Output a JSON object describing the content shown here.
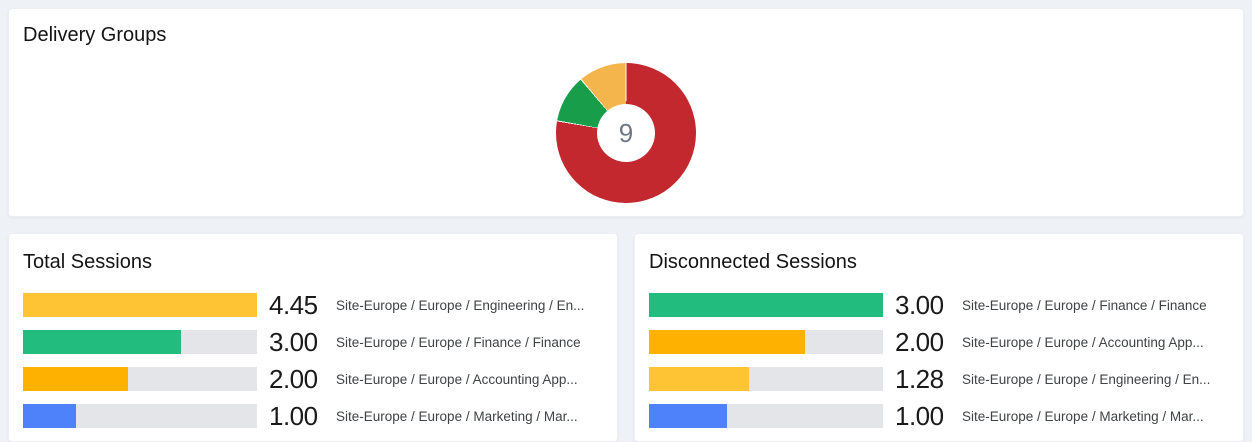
{
  "colors": {
    "page_background": "#EEF1F6",
    "card_background": "#FFFFFF",
    "bar_track": "#E4E5E8",
    "value_text": "#1A1A1A",
    "label_text": "#3F4346",
    "donut_center_text": "#6E7887"
  },
  "chart_data": [
    {
      "id": "delivery-groups",
      "type": "pie",
      "donut": true,
      "title": "Delivery Groups",
      "center_label": "9",
      "total": 9,
      "start_angle_deg": 0,
      "direction": "clockwise",
      "legend": "none",
      "segments": [
        {
          "name": "segment-red",
          "value": 7,
          "color": "#C2282D"
        },
        {
          "name": "segment-green",
          "value": 1,
          "color": "#189E4A"
        },
        {
          "name": "segment-amber",
          "value": 1,
          "color": "#F5B54D"
        }
      ]
    },
    {
      "id": "total-sessions",
      "type": "bar",
      "orientation": "horizontal",
      "title": "Total Sessions",
      "xlim": [
        0,
        4.45
      ],
      "grid": false,
      "rows": [
        {
          "label": "Site-Europe / Europe / Engineering / En...",
          "value": 4.45,
          "value_text": "4.45",
          "color": "#FFC433"
        },
        {
          "label": "Site-Europe / Europe / Finance / Finance",
          "value": 3.0,
          "value_text": "3.00",
          "color": "#22BC7E"
        },
        {
          "label": "Site-Europe / Europe / Accounting App...",
          "value": 2.0,
          "value_text": "2.00",
          "color": "#FFB100"
        },
        {
          "label": "Site-Europe / Europe / Marketing / Mar...",
          "value": 1.0,
          "value_text": "1.00",
          "color": "#4E82FB"
        }
      ]
    },
    {
      "id": "disconnected-sessions",
      "type": "bar",
      "orientation": "horizontal",
      "title": "Disconnected Sessions",
      "xlim": [
        0,
        3.0
      ],
      "grid": false,
      "rows": [
        {
          "label": "Site-Europe / Europe / Finance / Finance",
          "value": 3.0,
          "value_text": "3.00",
          "color": "#22BC7E"
        },
        {
          "label": "Site-Europe / Europe / Accounting App...",
          "value": 2.0,
          "value_text": "2.00",
          "color": "#FFB100"
        },
        {
          "label": "Site-Europe / Europe / Engineering / En...",
          "value": 1.28,
          "value_text": "1.28",
          "color": "#FFC433"
        },
        {
          "label": "Site-Europe / Europe / Marketing / Mar...",
          "value": 1.0,
          "value_text": "1.00",
          "color": "#4E82FB"
        }
      ]
    }
  ]
}
